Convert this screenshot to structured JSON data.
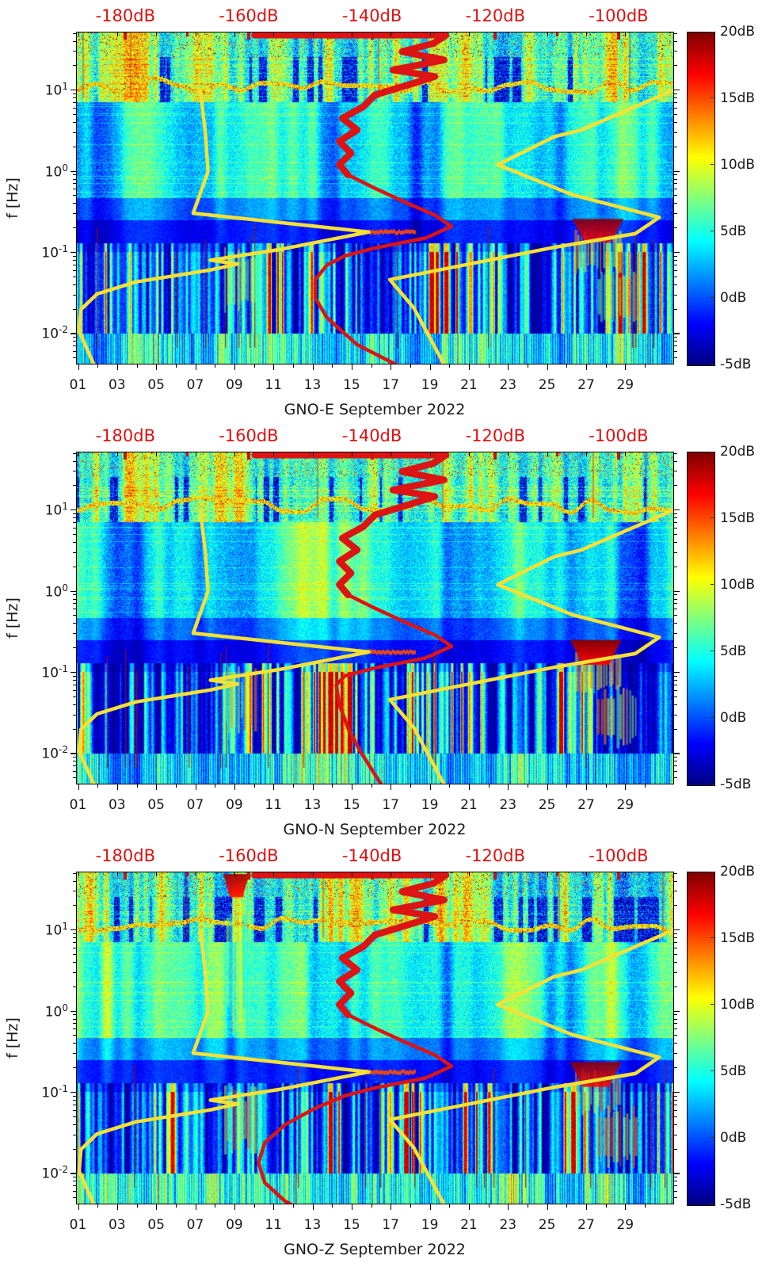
{
  "accent_colors": {
    "annotation_red": "#dd1111",
    "model_yellow": "#f5e135",
    "psd_red": "#dc1414",
    "axis_black": "#111111"
  },
  "chart_data": {
    "type": "heatmap",
    "subtype": "seismic power spectrogram, jet colormap, 3 stacked station-component panels",
    "x_axis": {
      "min_day": 0.9,
      "max_day": 31.5,
      "label_days": [
        1,
        3,
        5,
        7,
        9,
        11,
        13,
        15,
        17,
        19,
        21,
        23,
        25,
        27,
        29
      ],
      "tick_labels": [
        "01",
        "03",
        "05",
        "07",
        "09",
        "11",
        "13",
        "15",
        "17",
        "19",
        "21",
        "23",
        "25",
        "27",
        "29"
      ]
    },
    "y_axis": {
      "label": "f [Hz]",
      "scale": "log",
      "min_hz": 0.0041,
      "max_hz": 51.8,
      "decade_ticks": [
        {
          "mantissa": "10",
          "exponent": "1",
          "hz": 10
        },
        {
          "mantissa": "10",
          "exponent": "0",
          "hz": 1
        },
        {
          "mantissa": "10",
          "exponent": "-1",
          "hz": 0.1
        },
        {
          "mantissa": "10",
          "exponent": "-2",
          "hz": 0.01
        }
      ]
    },
    "top_axis": {
      "min_db": -188,
      "max_db": -91,
      "color": "#dd1111",
      "labels": [
        {
          "db": -180,
          "text": "-180dB"
        },
        {
          "db": -160,
          "text": "-160dB"
        },
        {
          "db": -140,
          "text": "-140dB"
        },
        {
          "db": -120,
          "text": "-120dB"
        },
        {
          "db": -100,
          "text": "-100dB"
        }
      ],
      "minor_tick_dbs": [
        -170,
        -150,
        -130,
        -110
      ]
    },
    "colorbar": {
      "min_db": -5,
      "max_db": 20,
      "colormap": "jet",
      "ticks": [
        {
          "db": 20,
          "label": "20dB"
        },
        {
          "db": 15,
          "label": "15dB"
        },
        {
          "db": 10,
          "label": "10dB"
        },
        {
          "db": 5,
          "label": "5dB"
        },
        {
          "db": 0,
          "label": "0dB"
        },
        {
          "db": -5,
          "label": "-5dB"
        }
      ]
    },
    "noise_models": {
      "low_model_db_hz": [
        [
          -167.8,
          9.64
        ],
        [
          -167.0,
          2.77
        ],
        [
          -166.6,
          0.98
        ],
        [
          -169.0,
          0.3
        ],
        [
          -140.5,
          0.176
        ],
        [
          -155.0,
          0.107
        ],
        [
          -166.2,
          0.079
        ],
        [
          -161.8,
          0.071
        ],
        [
          -166.2,
          0.06
        ],
        [
          -178.3,
          0.0427
        ],
        [
          -184.6,
          0.0303
        ],
        [
          -187.2,
          0.0195
        ],
        [
          -187.5,
          0.0105
        ],
        [
          -185.1,
          0.0041
        ]
      ],
      "high_model_db_hz": [
        [
          -91.0,
          9.91
        ],
        [
          -106.0,
          3.19
        ],
        [
          -110.4,
          2.64
        ],
        [
          -119.6,
          1.19
        ],
        [
          -107.5,
          0.507
        ],
        [
          -93.4,
          0.267
        ],
        [
          -97.3,
          0.168
        ],
        [
          -110.4,
          0.114
        ],
        [
          -115.7,
          0.095
        ],
        [
          -137.1,
          0.0456
        ],
        [
          -133.2,
          0.0204
        ],
        [
          -128.3,
          0.0041
        ]
      ]
    },
    "median_psd_upper_db_hz": [
      [
        -159,
        47
      ],
      [
        -128,
        47
      ],
      [
        -130,
        37.2
      ],
      [
        -135.1,
        29.4
      ],
      [
        -128.3,
        23.2
      ],
      [
        -136.6,
        17.5
      ],
      [
        -129.8,
        14.5
      ],
      [
        -134.2,
        11.4
      ],
      [
        -139.5,
        8.61
      ],
      [
        -141.4,
        6.18
      ],
      [
        -144.8,
        4.45
      ],
      [
        -142.4,
        3.19
      ],
      [
        -145.3,
        2.3
      ],
      [
        -143.4,
        1.65
      ],
      [
        -145.3,
        1.19
      ],
      [
        -143.9,
        0.89
      ]
    ],
    "panels": [
      {
        "station": "GNO-E",
        "title": "GNO-E September 2022",
        "texture_seed": 11,
        "median_psd_lower_db_hz": [
          [
            -143.9,
            0.89
          ],
          [
            -139.5,
            0.607
          ],
          [
            -134.2,
            0.396
          ],
          [
            -129.8,
            0.285
          ],
          [
            -127.1,
            0.207
          ],
          [
            -131.3,
            0.148
          ],
          [
            -139.5,
            0.112
          ],
          [
            -144.4,
            0.0895
          ],
          [
            -147.3,
            0.0689
          ],
          [
            -149.2,
            0.0456
          ],
          [
            -149.2,
            0.0271
          ],
          [
            -147.3,
            0.0154
          ],
          [
            -142.4,
            0.0072
          ],
          [
            -136.1,
            0.0041
          ]
        ],
        "hotspots": [
          {
            "kind": "stripes",
            "day": 9.3,
            "hz": 0.045,
            "w_day": 1.7,
            "h_dec": 0.75,
            "v": 0.82
          },
          {
            "kind": "stripes",
            "day": 28.6,
            "hz": 0.028,
            "w_day": 2.1,
            "h_dec": 0.7,
            "v": 0.8
          },
          {
            "kind": "line",
            "day": 16.7,
            "hz": 0.175,
            "w_day": 3.0,
            "h_dec": 0.1,
            "v": 0.8
          },
          {
            "kind": "stripes",
            "day": 27.6,
            "hz": 0.1,
            "w_day": 2.4,
            "h_dec": 0.5,
            "v": 0.75
          },
          {
            "kind": "blob",
            "day": 27.6,
            "hz": 0.185,
            "w_day": 2.6,
            "h_dec": 0.28,
            "v": 0.99
          }
        ]
      },
      {
        "station": "GNO-N",
        "title": "GNO-N September 2022",
        "texture_seed": 23,
        "median_psd_lower_db_hz": [
          [
            -143.9,
            0.89
          ],
          [
            -139.5,
            0.607
          ],
          [
            -134.2,
            0.396
          ],
          [
            -129.8,
            0.285
          ],
          [
            -127.1,
            0.207
          ],
          [
            -131.3,
            0.148
          ],
          [
            -139.5,
            0.112
          ],
          [
            -144.4,
            0.0895
          ],
          [
            -145.8,
            0.0687
          ],
          [
            -145.3,
            0.0395
          ],
          [
            -143.9,
            0.0204
          ],
          [
            -141.9,
            0.0105
          ],
          [
            -138.5,
            0.0041
          ]
        ],
        "hotspots": [
          {
            "kind": "stripes",
            "day": 9.3,
            "hz": 0.045,
            "w_day": 1.7,
            "h_dec": 0.75,
            "v": 0.82
          },
          {
            "kind": "stripes",
            "day": 28.6,
            "hz": 0.028,
            "w_day": 2.1,
            "h_dec": 0.7,
            "v": 0.8
          },
          {
            "kind": "line",
            "day": 16.7,
            "hz": 0.175,
            "w_day": 3.0,
            "h_dec": 0.1,
            "v": 0.8
          },
          {
            "kind": "stripes",
            "day": 27.6,
            "hz": 0.1,
            "w_day": 2.4,
            "h_dec": 0.5,
            "v": 0.75
          },
          {
            "kind": "blob",
            "day": 27.5,
            "hz": 0.175,
            "w_day": 2.6,
            "h_dec": 0.3,
            "v": 0.99
          }
        ]
      },
      {
        "station": "GNO-Z",
        "title": "GNO-Z September 2022",
        "texture_seed": 37,
        "median_psd_lower_db_hz": [
          [
            -143.9,
            0.89
          ],
          [
            -139.5,
            0.607
          ],
          [
            -134.2,
            0.396
          ],
          [
            -129.8,
            0.285
          ],
          [
            -127.1,
            0.207
          ],
          [
            -131.3,
            0.148
          ],
          [
            -139.5,
            0.112
          ],
          [
            -144.4,
            0.0895
          ],
          [
            -149.2,
            0.063
          ],
          [
            -154.1,
            0.0395
          ],
          [
            -157.4,
            0.0235
          ],
          [
            -158.4,
            0.0134
          ],
          [
            -157.4,
            0.0076
          ],
          [
            -154.1,
            0.0045
          ],
          [
            -153.1,
            0.0041
          ]
        ],
        "hotspots": [
          {
            "kind": "stripes",
            "day": 9.3,
            "hz": 0.045,
            "w_day": 1.7,
            "h_dec": 0.75,
            "v": 0.82
          },
          {
            "kind": "stripes",
            "day": 28.6,
            "hz": 0.028,
            "w_day": 2.1,
            "h_dec": 0.7,
            "v": 0.8
          },
          {
            "kind": "line",
            "day": 16.7,
            "hz": 0.175,
            "w_day": 3.0,
            "h_dec": 0.1,
            "v": 0.8
          },
          {
            "kind": "stripes",
            "day": 27.6,
            "hz": 0.1,
            "w_day": 2.4,
            "h_dec": 0.5,
            "v": 0.75
          },
          {
            "kind": "blob",
            "day": 27.5,
            "hz": 0.165,
            "w_day": 2.6,
            "h_dec": 0.3,
            "v": 0.99
          },
          {
            "kind": "stripes",
            "day": 9.15,
            "hz": 4.0,
            "w_day": 1.2,
            "h_dec": 1.8,
            "v": 0.65
          },
          {
            "kind": "blob",
            "day": 9.1,
            "hz": 35,
            "w_day": 1.3,
            "h_dec": 0.28,
            "v": 0.97
          }
        ]
      }
    ]
  }
}
